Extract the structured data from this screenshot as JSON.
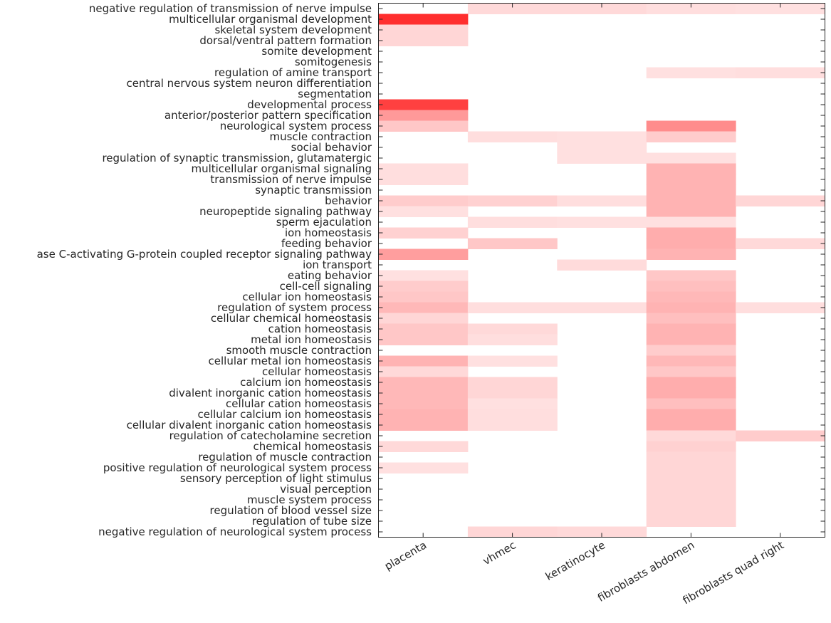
{
  "chart_data": {
    "type": "heatmap",
    "title": "",
    "xlabel": "",
    "ylabel": "",
    "color_scale": {
      "low": "#ffffff",
      "high": "#ff0000",
      "range": [
        0,
        1
      ]
    },
    "columns": [
      "placenta",
      "vhmec",
      "keratinocyte",
      "fibroblasts abdomen",
      "fibroblasts quad right"
    ],
    "rows": [
      "negative regulation of transmission of nerve impulse",
      "multicellular organismal development",
      "skeletal system development",
      "dorsal/ventral pattern formation",
      "somite development",
      "somitogenesis",
      "regulation of amine transport",
      "central nervous system neuron differentiation",
      "segmentation",
      "developmental process",
      "anterior/posterior pattern specification",
      "neurological system process",
      "muscle contraction",
      "social behavior",
      "regulation of synaptic transmission, glutamatergic",
      "multicellular organismal signaling",
      "transmission of nerve impulse",
      "synaptic transmission",
      "behavior",
      "neuropeptide signaling pathway",
      "sperm ejaculation",
      "ion homeostasis",
      "feeding behavior",
      "ase C-activating G-protein coupled receptor signaling pathway",
      "ion transport",
      "eating behavior",
      "cell-cell signaling",
      "cellular ion homeostasis",
      "regulation of system process",
      "cellular chemical homeostasis",
      "cation homeostasis",
      "metal ion homeostasis",
      "smooth muscle contraction",
      "cellular metal ion homeostasis",
      "cellular homeostasis",
      "calcium ion homeostasis",
      "divalent inorganic cation homeostasis",
      "cellular cation homeostasis",
      "cellular calcium ion homeostasis",
      "cellular divalent inorganic cation homeostasis",
      "regulation of catecholamine secretion",
      "chemical homeostasis",
      "regulation of muscle contraction",
      "positive regulation of neurological system process",
      "sensory perception of light stimulus",
      "visual perception",
      "muscle system process",
      "regulation of blood vessel size",
      "regulation of tube size",
      "negative regulation of neurological system process"
    ],
    "values": [
      [
        0,
        0.15,
        0.15,
        0.13,
        0.12
      ],
      [
        0.82,
        0,
        0,
        0,
        0
      ],
      [
        0.16,
        0,
        0,
        0,
        0
      ],
      [
        0.16,
        0,
        0,
        0,
        0
      ],
      [
        0,
        0,
        0,
        0,
        0
      ],
      [
        0,
        0,
        0,
        0,
        0
      ],
      [
        0,
        0,
        0,
        0.12,
        0.13
      ],
      [
        0,
        0,
        0,
        0,
        0
      ],
      [
        0,
        0,
        0,
        0,
        0
      ],
      [
        0.75,
        0,
        0,
        0,
        0
      ],
      [
        0.4,
        0,
        0,
        0,
        0
      ],
      [
        0.22,
        0,
        0,
        0.45,
        0
      ],
      [
        0,
        0.13,
        0.12,
        0.2,
        0
      ],
      [
        0,
        0,
        0.12,
        0,
        0
      ],
      [
        0,
        0,
        0.12,
        0.12,
        0
      ],
      [
        0.13,
        0,
        0,
        0.3,
        0
      ],
      [
        0.13,
        0,
        0,
        0.3,
        0
      ],
      [
        0,
        0,
        0,
        0.3,
        0
      ],
      [
        0.2,
        0.18,
        0.13,
        0.3,
        0.16
      ],
      [
        0.12,
        0,
        0,
        0.3,
        0
      ],
      [
        0,
        0.13,
        0.12,
        0.12,
        0
      ],
      [
        0.18,
        0,
        0,
        0.32,
        0
      ],
      [
        0,
        0.22,
        0,
        0.32,
        0.15
      ],
      [
        0.38,
        0,
        0,
        0.3,
        0
      ],
      [
        0,
        0,
        0.14,
        0,
        0
      ],
      [
        0.12,
        0,
        0,
        0.22,
        0
      ],
      [
        0.2,
        0,
        0,
        0.25,
        0
      ],
      [
        0.22,
        0,
        0,
        0.28,
        0
      ],
      [
        0.28,
        0.13,
        0.13,
        0.3,
        0.13
      ],
      [
        0.16,
        0,
        0,
        0.25,
        0
      ],
      [
        0.22,
        0.15,
        0,
        0.3,
        0
      ],
      [
        0.22,
        0.13,
        0,
        0.3,
        0
      ],
      [
        0,
        0,
        0,
        0.2,
        0
      ],
      [
        0.3,
        0.12,
        0,
        0.28,
        0
      ],
      [
        0.15,
        0,
        0,
        0.22,
        0
      ],
      [
        0.28,
        0.16,
        0,
        0.32,
        0
      ],
      [
        0.28,
        0.16,
        0,
        0.32,
        0
      ],
      [
        0.28,
        0.12,
        0,
        0.25,
        0
      ],
      [
        0.3,
        0.13,
        0,
        0.32,
        0
      ],
      [
        0.3,
        0.13,
        0,
        0.32,
        0
      ],
      [
        0,
        0,
        0,
        0.15,
        0.2
      ],
      [
        0.15,
        0,
        0,
        0.18,
        0
      ],
      [
        0,
        0,
        0,
        0.16,
        0
      ],
      [
        0.12,
        0,
        0,
        0.16,
        0
      ],
      [
        0,
        0,
        0,
        0.16,
        0
      ],
      [
        0,
        0,
        0,
        0.16,
        0
      ],
      [
        0,
        0,
        0,
        0.16,
        0
      ],
      [
        0,
        0,
        0,
        0.16,
        0
      ],
      [
        0,
        0,
        0,
        0.16,
        0
      ],
      [
        0,
        0.16,
        0.15,
        0,
        0
      ]
    ],
    "grid": false,
    "legend": "none"
  }
}
